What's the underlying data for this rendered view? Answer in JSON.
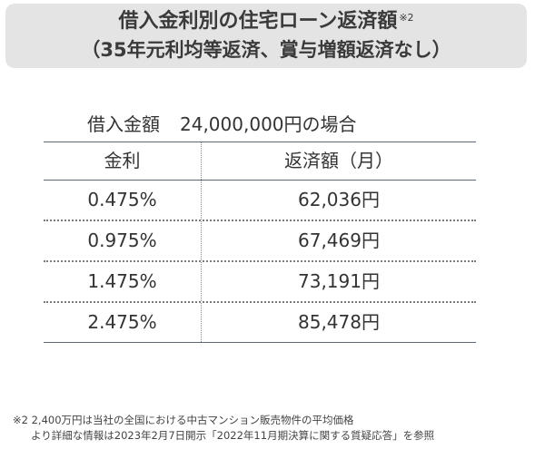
{
  "title": {
    "line1": "借入金利別の住宅ローン返済額",
    "note_mark": "※2",
    "line2": "（35年元利均等返済、賞与増額返済なし）"
  },
  "caption": {
    "label": "借入金額",
    "amount": "24,000,000円の場合"
  },
  "table": {
    "headers": {
      "rate": "金利",
      "payment": "返済額（月）"
    },
    "rows": [
      {
        "rate": "0.475%",
        "payment": "62,036円"
      },
      {
        "rate": "0.975%",
        "payment": "67,469円"
      },
      {
        "rate": "1.475%",
        "payment": "73,191円"
      },
      {
        "rate": "2.475%",
        "payment": "85,478円"
      }
    ]
  },
  "footnote": {
    "line1": "※2  2,400万円は当社の全国における中古マンション販売物件の平均価格",
    "line2": "より詳細な情報は2023年2月7日開示「2022年11月期決算に関する質疑応答」を参照"
  }
}
